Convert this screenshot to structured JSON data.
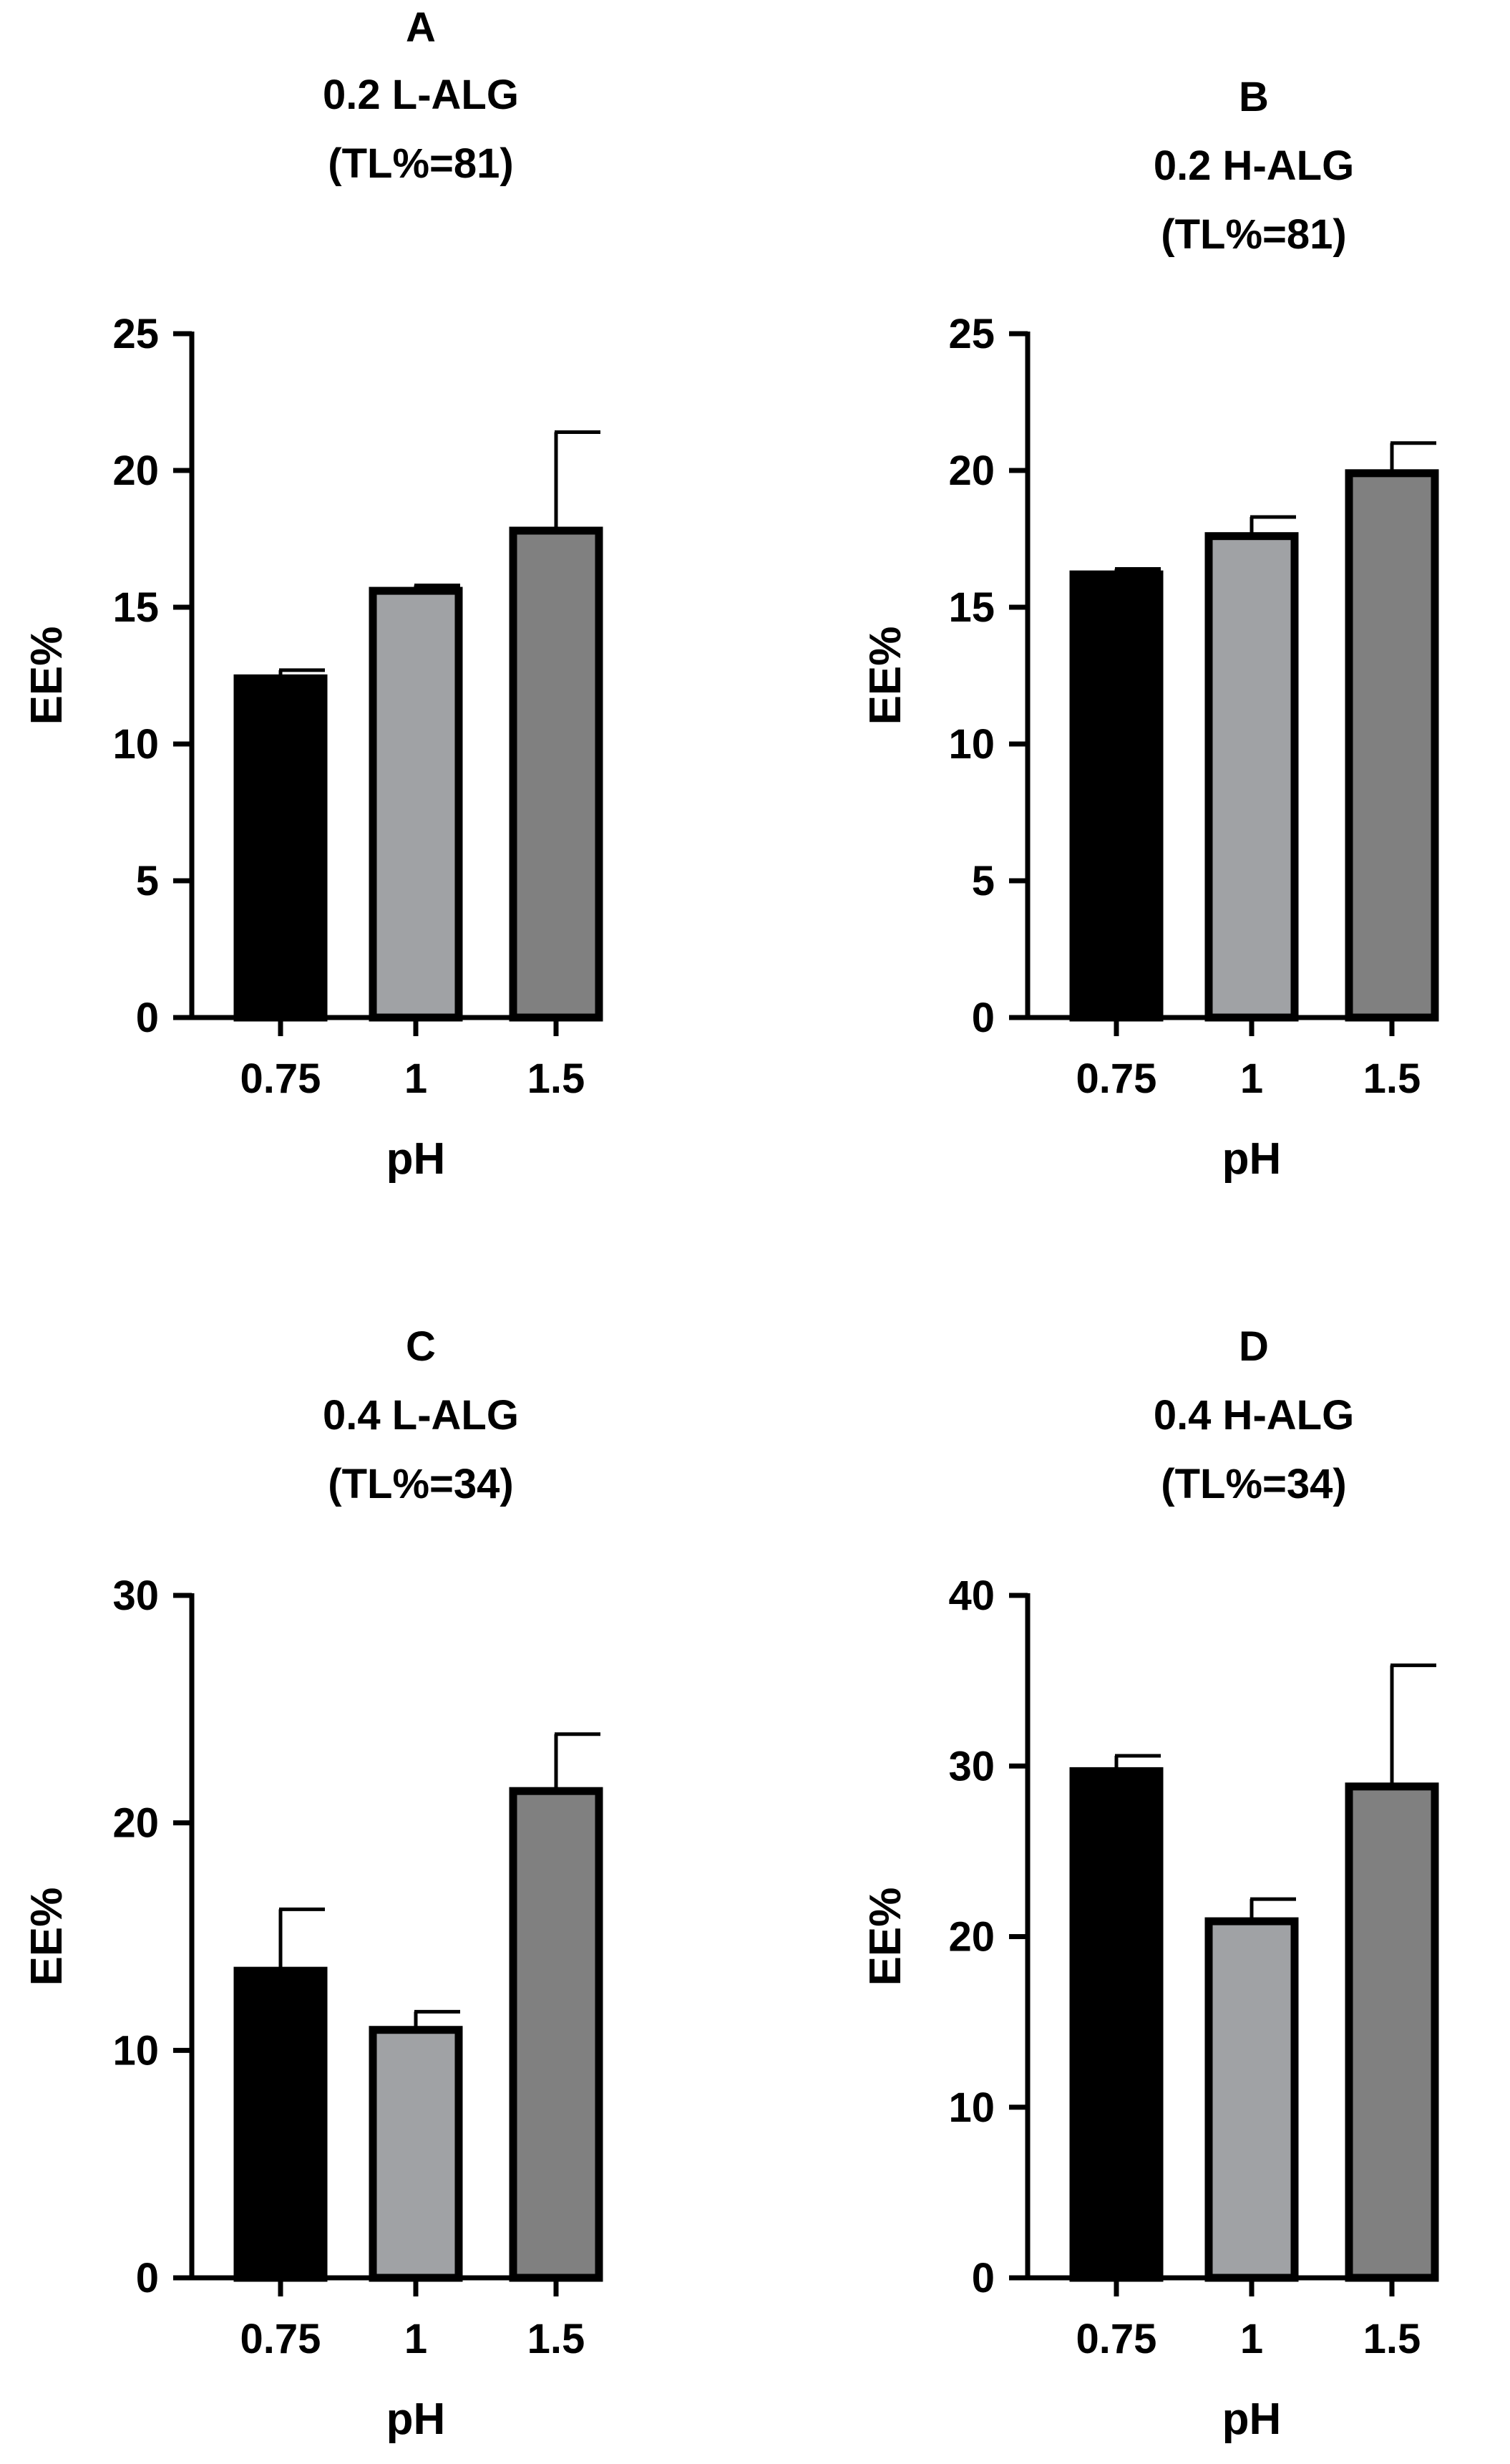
{
  "chart_data": [
    {
      "type": "bar",
      "panel": "A",
      "title_lines": [
        "A",
        "0.2 L-ALG",
        "(TL%=81)"
      ],
      "xlabel": "pH",
      "ylabel": "EE%",
      "categories": [
        "0.75",
        "1",
        "1.5"
      ],
      "values": [
        12.4,
        15.6,
        17.8
      ],
      "errors": [
        0.3,
        0.2,
        3.6
      ],
      "ylim": [
        0,
        25
      ],
      "yticks": [
        0,
        5,
        10,
        15,
        20,
        25
      ],
      "bar_colors": [
        "#000000",
        "#a0a2a5",
        "#808080"
      ]
    },
    {
      "type": "bar",
      "panel": "B",
      "title_lines": [
        "B",
        "0.2 H-ALG",
        "(TL%=81)"
      ],
      "xlabel": "pH",
      "ylabel": "EE%",
      "categories": [
        "0.75",
        "1",
        "1.5"
      ],
      "values": [
        16.2,
        17.6,
        19.9
      ],
      "errors": [
        0.2,
        0.7,
        1.1
      ],
      "ylim": [
        0,
        25
      ],
      "yticks": [
        0,
        5,
        10,
        15,
        20,
        25
      ],
      "bar_colors": [
        "#000000",
        "#a0a2a5",
        "#808080"
      ]
    },
    {
      "type": "bar",
      "panel": "C",
      "title_lines": [
        "C",
        "0.4 L-ALG",
        "(TL%=34)"
      ],
      "xlabel": "pH",
      "ylabel": "EE%",
      "categories": [
        "0.75",
        "1",
        "1.5"
      ],
      "values": [
        13.5,
        10.9,
        21.4
      ],
      "errors": [
        2.7,
        0.8,
        2.5
      ],
      "ylim": [
        0,
        30
      ],
      "yticks": [
        0,
        10,
        20,
        30
      ],
      "bar_colors": [
        "#000000",
        "#a0a2a5",
        "#808080"
      ]
    },
    {
      "type": "bar",
      "panel": "D",
      "title_lines": [
        "D",
        "0.4 H-ALG",
        "(TL%=34)"
      ],
      "xlabel": "pH",
      "ylabel": "EE%",
      "categories": [
        "0.75",
        "1",
        "1.5"
      ],
      "values": [
        29.7,
        20.9,
        28.8
      ],
      "errors": [
        0.9,
        1.3,
        7.1
      ],
      "ylim": [
        0,
        40
      ],
      "yticks": [
        0,
        10,
        20,
        30,
        40
      ],
      "bar_colors": [
        "#000000",
        "#a0a2a5",
        "#808080"
      ]
    }
  ]
}
